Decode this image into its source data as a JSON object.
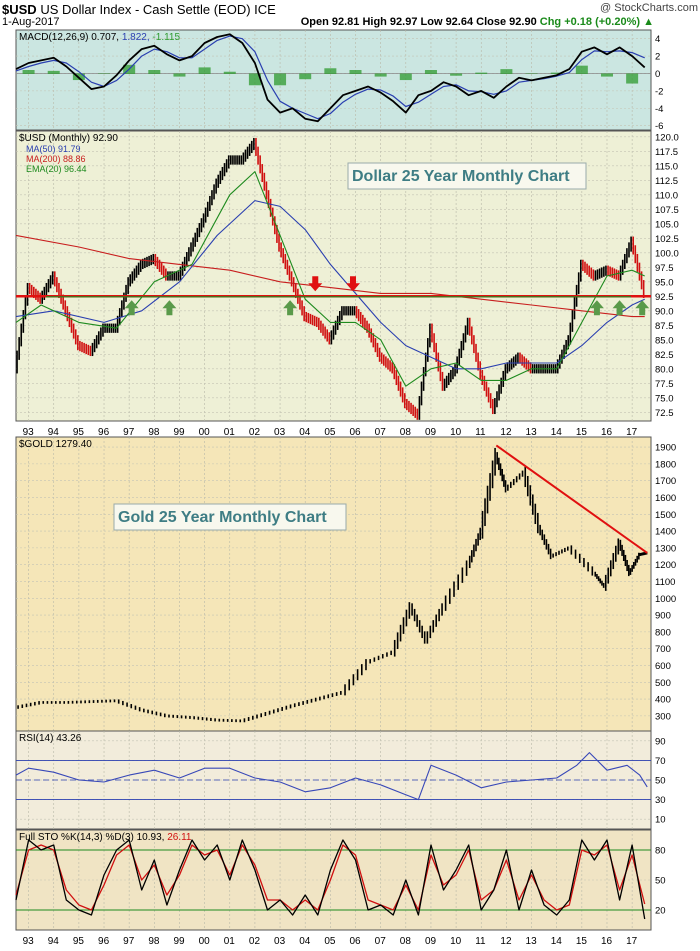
{
  "header": {
    "ticker": "$USD",
    "name": "US Dollar Index - Cash Settle (EOD) ICE",
    "brand": "@ StockCharts.com",
    "date": "1-Aug-2017",
    "quote": "Open 92.81  High 92.97  Low 92.64  Close 92.90",
    "chg": "Chg +0.18 (+0.20%)",
    "chg_arrow": "▲"
  },
  "colors": {
    "macd_bg": "#cbe6e1",
    "usd_bg": "#eef0d6",
    "gold_bg": "#f5e6b8",
    "rsi_bg": "#f2ecdb",
    "sto_bg": "#f0e4c4",
    "price": "#000000",
    "ma50": "#2a3fb0",
    "ma200": "#c81e1e",
    "ema20": "#1e8a1e",
    "support": "#1e8a1e",
    "resistance": "#e01010",
    "arrow_up": "#5a9a4a",
    "arrow_down": "#e01010"
  },
  "chart_data": [
    {
      "type": "line",
      "panel": "MACD",
      "legend": "MACD(12,26,9) 0.707, 1.822, -1.115",
      "legend_parts": [
        "MACD(12,26,9) 0.707,",
        "1.822,",
        "-1.115"
      ],
      "ylim": [
        -6.5,
        5
      ],
      "yticks": [
        -6,
        -4,
        -2,
        0,
        2,
        4
      ],
      "series": [
        {
          "name": "MACD",
          "color": "#000000",
          "x": [
            1992.5,
            1993,
            1993.5,
            1994,
            1994.5,
            1995,
            1995.5,
            1996,
            1996.5,
            1997,
            1997.5,
            1998,
            1998.5,
            1999,
            1999.5,
            2000,
            2000.5,
            2001,
            2001.5,
            2002,
            2002.5,
            2003,
            2003.5,
            2004,
            2004.5,
            2005,
            2005.5,
            2006,
            2006.5,
            2007,
            2007.5,
            2008,
            2008.5,
            2009,
            2009.5,
            2010,
            2010.5,
            2011,
            2011.5,
            2012,
            2012.5,
            2013,
            2013.5,
            2014,
            2014.5,
            2015,
            2015.5,
            2016,
            2016.5,
            2017,
            2017.5
          ],
          "y": [
            0.5,
            1.2,
            1.5,
            1.8,
            0.8,
            -0.5,
            -1.8,
            -1.5,
            -0.2,
            1.5,
            2.8,
            3.2,
            2.2,
            1.5,
            2.0,
            3.5,
            4.2,
            4.5,
            3.5,
            1.2,
            -3.0,
            -4.5,
            -4.0,
            -5.2,
            -5.5,
            -4.0,
            -2.5,
            -2.0,
            -1.5,
            -2.2,
            -3.2,
            -4.5,
            -2.5,
            -2.0,
            -1.0,
            -1.5,
            -2.5,
            -2.0,
            -2.8,
            -1.5,
            -0.5,
            -0.8,
            -0.5,
            -0.2,
            0.5,
            2.5,
            3.0,
            2.2,
            3.0,
            2.0,
            0.7
          ]
        },
        {
          "name": "Signal",
          "color": "#2a3fb0",
          "x": [
            1992.5,
            1993,
            1993.5,
            1994,
            1994.5,
            1995,
            1995.5,
            1996,
            1996.5,
            1997,
            1997.5,
            1998,
            1998.5,
            1999,
            1999.5,
            2000,
            2000.5,
            2001,
            2001.5,
            2002,
            2002.5,
            2003,
            2003.5,
            2004,
            2004.5,
            2005,
            2005.5,
            2006,
            2006.5,
            2007,
            2007.5,
            2008,
            2008.5,
            2009,
            2009.5,
            2010,
            2010.5,
            2011,
            2011.5,
            2012,
            2012.5,
            2013,
            2013.5,
            2014,
            2014.5,
            2015,
            2015.5,
            2016,
            2016.5,
            2017,
            2017.5
          ],
          "y": [
            0.3,
            0.8,
            1.2,
            1.5,
            1.2,
            0.2,
            -1.0,
            -1.5,
            -0.8,
            0.5,
            2.0,
            2.8,
            2.5,
            1.8,
            1.8,
            2.8,
            3.8,
            4.3,
            4.0,
            2.5,
            -0.8,
            -3.2,
            -4.0,
            -4.6,
            -5.2,
            -4.6,
            -3.3,
            -2.4,
            -1.8,
            -1.9,
            -2.6,
            -3.8,
            -3.3,
            -2.4,
            -1.5,
            -1.3,
            -2.0,
            -2.1,
            -2.4,
            -2.0,
            -1.0,
            -0.8,
            -0.6,
            -0.3,
            0.1,
            1.6,
            2.6,
            2.5,
            2.6,
            2.4,
            1.8
          ]
        }
      ],
      "histogram": {
        "name": "Histogram",
        "color": "#2e9a2e",
        "x": [
          1993,
          1994,
          1995,
          1996,
          1997,
          1998,
          1999,
          2000,
          2001,
          2002,
          2003,
          2004,
          2005,
          2006,
          2007,
          2008,
          2009,
          2010,
          2011,
          2012,
          2013,
          2014,
          2015,
          2016,
          2017
        ],
        "y": [
          0.4,
          0.3,
          -0.7,
          0.0,
          1.0,
          0.4,
          -0.3,
          0.7,
          0.2,
          -1.3,
          -1.3,
          -0.6,
          0.6,
          0.4,
          -0.3,
          -0.7,
          0.4,
          -0.2,
          0.1,
          0.5,
          0.0,
          0.1,
          0.9,
          -0.3,
          -1.1
        ]
      }
    },
    {
      "type": "line",
      "panel": "USD",
      "legend": {
        "price": "$USD (Monthly) 92.90",
        "ma50": "MA(50) 91.79",
        "ma200": "MA(200) 88.86",
        "ema20": "EMA(20) 96.44"
      },
      "annotation": "Dollar 25 Year Monthly Chart",
      "ylim": [
        71,
        121
      ],
      "yticks": [
        72.5,
        75.0,
        77.5,
        80.0,
        82.5,
        85.0,
        87.5,
        90.0,
        92.5,
        95.0,
        97.5,
        100.0,
        102.5,
        105.0,
        107.5,
        110.0,
        112.5,
        115.0,
        117.5,
        120.0
      ],
      "support_level": 92.5,
      "series": [
        {
          "name": "$USD",
          "x": [
            1992.5,
            1993,
            1993.5,
            1994,
            1994.5,
            1995,
            1995.5,
            1996,
            1996.5,
            1997,
            1997.5,
            1998,
            1998.5,
            1999,
            1999.5,
            2000,
            2000.5,
            2001,
            2001.5,
            2002,
            2002.5,
            2003,
            2003.5,
            2004,
            2004.5,
            2005,
            2005.5,
            2006,
            2006.5,
            2007,
            2007.5,
            2008,
            2008.5,
            2009,
            2009.5,
            2010,
            2010.5,
            2011,
            2011.5,
            2012,
            2012.5,
            2013,
            2013.5,
            2014,
            2014.5,
            2015,
            2015.5,
            2016,
            2016.5,
            2017,
            2017.5
          ],
          "y": [
            80,
            94,
            92,
            96,
            90,
            84,
            83,
            87,
            87,
            95,
            98,
            99,
            96,
            96,
            101,
            106,
            112,
            116,
            116,
            119,
            110,
            101,
            95,
            89,
            88,
            85,
            90,
            90,
            87,
            82,
            80,
            74,
            72,
            87,
            77,
            80,
            88,
            79,
            73,
            80,
            82,
            80,
            80,
            80,
            85,
            98,
            96,
            97,
            96,
            102,
            93
          ]
        },
        {
          "name": "MA(50)",
          "x": [
            1992.5,
            1994,
            1996,
            1997.5,
            1999,
            2000.5,
            2002,
            2003,
            2004,
            2005,
            2006,
            2007,
            2008,
            2009,
            2010,
            2011,
            2012,
            2013,
            2014,
            2015,
            2016,
            2017,
            2017.5
          ],
          "y": [
            89,
            90,
            88,
            90,
            95,
            103,
            109,
            108,
            104,
            98,
            93,
            88,
            84,
            82,
            80,
            80,
            81,
            81,
            81,
            84,
            88,
            91,
            92
          ]
        },
        {
          "name": "MA(200)",
          "x": [
            1992.5,
            1995,
            1997,
            1999,
            2001,
            2003,
            2005,
            2007,
            2009,
            2011,
            2013,
            2015,
            2017,
            2017.5
          ],
          "y": [
            103,
            101,
            99,
            98,
            97,
            95,
            94,
            93,
            93,
            92,
            91,
            90,
            89,
            89
          ]
        },
        {
          "name": "EMA(20)",
          "x": [
            1992.5,
            1993.5,
            1995,
            1996.5,
            1998,
            1999.5,
            2001,
            2002,
            2003,
            2004,
            2005,
            2006,
            2007,
            2008,
            2009,
            2010,
            2011,
            2012,
            2013,
            2014,
            2015,
            2016,
            2017,
            2017.5
          ],
          "y": [
            88,
            91,
            88,
            87,
            95,
            98,
            110,
            114,
            103,
            92,
            88,
            88,
            85,
            77,
            80,
            81,
            78,
            78,
            80,
            80,
            88,
            96,
            97,
            96
          ]
        }
      ],
      "arrows_up_x": [
        1997.1,
        1998.6,
        2003.4,
        2015.6,
        2016.5,
        2017.4
      ],
      "arrows_down_x": [
        2004.4,
        2005.9
      ],
      "x_tick_labels": [
        "93",
        "94",
        "95",
        "96",
        "97",
        "98",
        "99",
        "00",
        "01",
        "02",
        "03",
        "04",
        "05",
        "06",
        "07",
        "08",
        "09",
        "10",
        "11",
        "12",
        "13",
        "14",
        "15",
        "16",
        "17"
      ]
    },
    {
      "type": "line",
      "panel": "GOLD",
      "legend": "$GOLD 1279.40",
      "annotation": "Gold 25 Year Monthly Chart",
      "ylim": [
        210,
        1960
      ],
      "yticks": [
        300,
        400,
        500,
        600,
        700,
        800,
        900,
        1000,
        1100,
        1200,
        1300,
        1400,
        1500,
        1600,
        1700,
        1800,
        1900
      ],
      "series": [
        {
          "name": "$GOLD",
          "x": [
            1992.5,
            1993.5,
            1994.5,
            1995.5,
            1996.5,
            1997.5,
            1998.5,
            1999.5,
            2000.5,
            2001.5,
            2002.5,
            2003.5,
            2004.5,
            2005.5,
            2006.5,
            2007.5,
            2008.2,
            2008.8,
            2009.5,
            2010.5,
            2011,
            2011.6,
            2012,
            2012.7,
            2013.3,
            2013.8,
            2014.5,
            2015.5,
            2015.9,
            2016.5,
            2016.9,
            2017.3,
            2017.6
          ],
          "y": [
            350,
            380,
            380,
            385,
            390,
            335,
            300,
            290,
            275,
            270,
            315,
            360,
            400,
            440,
            620,
            680,
            950,
            750,
            950,
            1200,
            1400,
            1850,
            1650,
            1750,
            1420,
            1250,
            1300,
            1150,
            1070,
            1330,
            1150,
            1260,
            1270
          ]
        }
      ],
      "trendline": {
        "x": [
          2011.6,
          2017.6
        ],
        "y": [
          1910,
          1270
        ]
      }
    },
    {
      "type": "line",
      "panel": "RSI",
      "legend": "RSI(14) 43.26",
      "ylim": [
        0,
        100
      ],
      "yticks": [
        10,
        30,
        50,
        70,
        90
      ],
      "series": [
        {
          "name": "RSI(14)",
          "x": [
            1992.5,
            1993,
            1994,
            1995,
            1996,
            1997,
            1998,
            1999,
            2000,
            2001,
            2002,
            2003,
            2004,
            2005,
            2006,
            2007,
            2008,
            2008.5,
            2009,
            2010,
            2011,
            2012,
            2013,
            2014,
            2014.8,
            2015.3,
            2016,
            2016.8,
            2017.3,
            2017.6
          ],
          "y": [
            55,
            62,
            58,
            50,
            48,
            55,
            60,
            52,
            62,
            62,
            52,
            48,
            38,
            42,
            52,
            45,
            35,
            30,
            65,
            55,
            42,
            48,
            50,
            52,
            65,
            78,
            60,
            65,
            55,
            43
          ]
        }
      ]
    },
    {
      "type": "line",
      "panel": "STO",
      "legend": "Full STO %K(14,3) %D(3) 10.93, 26.11",
      "legend_parts": [
        "Full STO %K(14,3) %D(3) 10.93,",
        "26.11"
      ],
      "ylim": [
        0,
        100
      ],
      "yticks": [
        20,
        50,
        80
      ],
      "series": [
        {
          "name": "%K",
          "x": [
            1992.5,
            1993,
            1993.5,
            1994,
            1994.5,
            1995,
            1995.5,
            1996,
            1996.5,
            1997,
            1997.5,
            1998,
            1998.5,
            1999,
            1999.5,
            2000,
            2000.5,
            2001,
            2001.5,
            2002,
            2002.5,
            2003,
            2003.5,
            2004,
            2004.5,
            2005,
            2005.5,
            2006,
            2006.5,
            2007,
            2007.5,
            2008,
            2008.5,
            2009,
            2009.5,
            2010,
            2010.5,
            2011,
            2011.5,
            2012,
            2012.5,
            2013,
            2013.5,
            2014,
            2014.5,
            2015,
            2015.5,
            2016,
            2016.5,
            2017,
            2017.5
          ],
          "y": [
            30,
            90,
            80,
            85,
            30,
            20,
            15,
            55,
            80,
            90,
            40,
            70,
            25,
            60,
            90,
            70,
            85,
            50,
            90,
            60,
            20,
            30,
            15,
            35,
            15,
            60,
            90,
            70,
            20,
            25,
            15,
            50,
            15,
            85,
            40,
            60,
            85,
            20,
            40,
            80,
            20,
            60,
            25,
            15,
            30,
            90,
            70,
            90,
            30,
            85,
            11
          ]
        },
        {
          "name": "%D",
          "x": [
            1992.5,
            1993,
            1993.5,
            1994,
            1994.5,
            1995,
            1995.5,
            1996,
            1996.5,
            1997,
            1997.5,
            1998,
            1998.5,
            1999,
            1999.5,
            2000,
            2000.5,
            2001,
            2001.5,
            2002,
            2002.5,
            2003,
            2003.5,
            2004,
            2004.5,
            2005,
            2005.5,
            2006,
            2006.5,
            2007,
            2007.5,
            2008,
            2008.5,
            2009,
            2009.5,
            2010,
            2010.5,
            2011,
            2011.5,
            2012,
            2012.5,
            2013,
            2013.5,
            2014,
            2014.5,
            2015,
            2015.5,
            2016,
            2016.5,
            2017,
            2017.5
          ],
          "y": [
            35,
            80,
            85,
            80,
            40,
            25,
            20,
            45,
            75,
            85,
            50,
            65,
            35,
            55,
            85,
            75,
            80,
            55,
            85,
            65,
            30,
            30,
            20,
            30,
            20,
            50,
            85,
            75,
            30,
            25,
            20,
            45,
            20,
            75,
            45,
            55,
            80,
            30,
            40,
            70,
            30,
            55,
            30,
            20,
            25,
            80,
            75,
            85,
            40,
            75,
            26
          ]
        }
      ],
      "x_tick_labels": [
        "93",
        "94",
        "95",
        "96",
        "97",
        "98",
        "99",
        "00",
        "01",
        "02",
        "03",
        "04",
        "05",
        "06",
        "07",
        "08",
        "09",
        "10",
        "11",
        "12",
        "13",
        "14",
        "15",
        "16",
        "17"
      ]
    }
  ]
}
